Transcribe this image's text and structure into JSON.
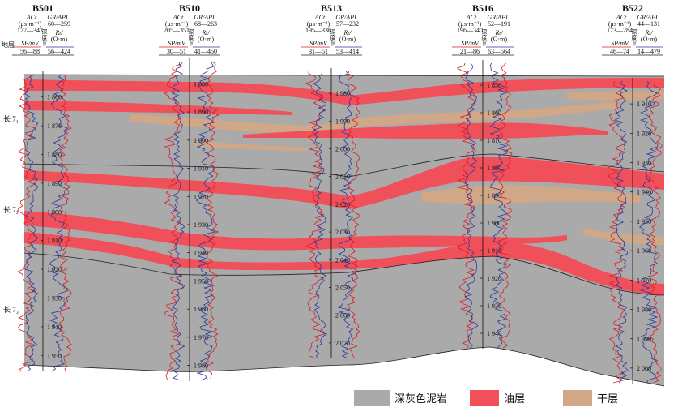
{
  "header": {
    "strata_label": "地层"
  },
  "wells": [
    {
      "name": "B501",
      "ac_label": "ACt",
      "ac_unit": "(μs·m⁻¹)",
      "ac_range": "177—343",
      "gr_label": "GR/API",
      "gr_range": "60—259",
      "sp_label": "SP/mV",
      "sp_range": "56—88",
      "rt_label": "Rₜ/",
      "rt_unit": "(Ω·m)",
      "rt_range": "56—424",
      "depth_label": "深度/m",
      "depth_start": 1850,
      "depth_end": 1955,
      "ticks": [
        "1 860",
        "1 870",
        "1 880",
        "1 890",
        "1 900",
        "1 910",
        "1 920",
        "1 930",
        "1 940",
        "1 950"
      ]
    },
    {
      "name": "B510",
      "ac_label": "ACt",
      "ac_unit": "(μs·m⁻¹)",
      "ac_range": "205—351",
      "gr_label": "GR/API",
      "gr_range": "68—263",
      "sp_label": "SP/mV",
      "sp_range": "30—51",
      "rt_label": "Rₜ/",
      "rt_unit": "(Ω·m)",
      "rt_range": "41—450",
      "depth_label": "深度/m",
      "depth_start": 1876,
      "depth_end": 1984,
      "ticks": [
        "1 880",
        "1 890",
        "1 900",
        "1 910",
        "1 920",
        "1 930",
        "1 940",
        "1 950",
        "1 960",
        "1 970",
        "1 980"
      ]
    },
    {
      "name": "B513",
      "ac_label": "ACt",
      "ac_unit": "(μs·m⁻¹)",
      "ac_range": "195—336",
      "gr_label": "GR/API",
      "gr_range": "57—232",
      "sp_label": "SP/mV",
      "sp_range": "31—51",
      "rt_label": "Rₜ/",
      "rt_unit": "(Ω·m)",
      "rt_range": "53—414",
      "depth_label": "深度/m",
      "depth_start": 1977,
      "depth_end": 2080,
      "ticks": [
        "1 980",
        "1 990",
        "2 000",
        "2 010",
        "2 020",
        "2 030",
        "2 040",
        "2 050",
        "2 060",
        "2 070"
      ]
    },
    {
      "name": "B516",
      "ac_label": "ACt",
      "ac_unit": "(μs·m⁻¹)",
      "ac_range": "196—340",
      "gr_label": "GR/API",
      "gr_range": "52—191",
      "sp_label": "SP/mV",
      "sp_range": "21—86",
      "rt_label": "Rₜ/",
      "rt_unit": "(Ω·m)",
      "rt_range": "63—564",
      "depth_label": "深度/m",
      "depth_start": 1845,
      "depth_end": 1945,
      "ticks": [
        "1 850",
        "1 860",
        "1 870",
        "1 880",
        "1 890",
        "1 900",
        "1 910",
        "1 920",
        "1 930",
        "1 940"
      ]
    },
    {
      "name": "B522",
      "ac_label": "ACt",
      "ac_unit": "(μs·m⁻¹)",
      "ac_range": "173—284",
      "gr_label": "GR/API",
      "gr_range": "44—131",
      "sp_label": "SP/mV",
      "sp_range": "46—74",
      "rt_label": "Rₜ/",
      "rt_unit": "(Ω·m)",
      "rt_range": "14—479",
      "depth_label": "深度/m",
      "depth_start": 1903,
      "depth_end": 2008,
      "ticks": [
        "1 910",
        "1 920",
        "1 930",
        "1 940",
        "1 950",
        "1 960",
        "1 970",
        "1 980",
        "1 990",
        "2 000"
      ]
    }
  ],
  "layers": [
    {
      "label": "长 7₁"
    },
    {
      "label": "长 7₂"
    },
    {
      "label": "长 7₃"
    }
  ],
  "legend": [
    {
      "label": "深灰色泥岩",
      "color": "#aaaaaa"
    },
    {
      "label": "油层",
      "color": "#f0505a"
    },
    {
      "label": "干层",
      "color": "#d0a888"
    }
  ],
  "colors": {
    "mudstone": "#aaaaaa",
    "oil": "#f0505a",
    "dry": "#d0a888",
    "ac_sp_curve": "#d81e28",
    "gr_rt_curve": "#2a3a9a"
  }
}
